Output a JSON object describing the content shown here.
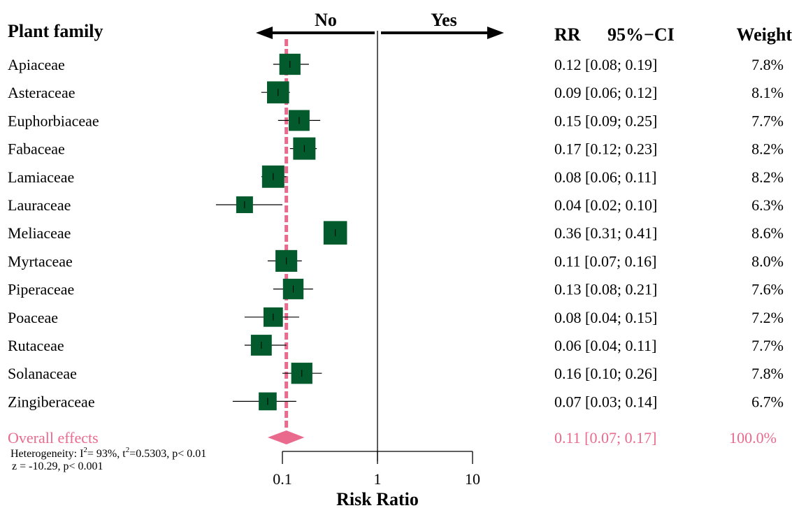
{
  "chart_data": {
    "type": "forest",
    "scale": "log",
    "xlabel": "Risk Ratio",
    "xlim": [
      0.1,
      10
    ],
    "x_ticks": [
      "0.1",
      "1",
      "10"
    ],
    "x_tick_values": [
      0.1,
      1,
      10
    ],
    "reference_line": 1,
    "direction_labels": {
      "left": "No",
      "right": "Yes"
    },
    "column_headers": {
      "study": "Plant family",
      "estimate": "RR",
      "ci": "95%−CI",
      "weight": "Weight"
    },
    "studies": [
      {
        "name": "Apiaceae",
        "rr": 0.12,
        "lower": 0.08,
        "upper": 0.19,
        "text": "0.12 [0.08; 0.19]",
        "weight": "7.8%",
        "w": 7.8
      },
      {
        "name": "Asteraceae",
        "rr": 0.09,
        "lower": 0.06,
        "upper": 0.12,
        "text": "0.09 [0.06; 0.12]",
        "weight": "8.1%",
        "w": 8.1
      },
      {
        "name": "Euphorbiaceae",
        "rr": 0.15,
        "lower": 0.09,
        "upper": 0.25,
        "text": "0.15 [0.09; 0.25]",
        "weight": "7.7%",
        "w": 7.7
      },
      {
        "name": "Fabaceae",
        "rr": 0.17,
        "lower": 0.12,
        "upper": 0.23,
        "text": "0.17 [0.12; 0.23]",
        "weight": "8.2%",
        "w": 8.2
      },
      {
        "name": "Lamiaceae",
        "rr": 0.08,
        "lower": 0.06,
        "upper": 0.11,
        "text": "0.08 [0.06; 0.11]",
        "weight": "8.2%",
        "w": 8.2
      },
      {
        "name": "Lauraceae",
        "rr": 0.04,
        "lower": 0.02,
        "upper": 0.1,
        "text": "0.04 [0.02; 0.10]",
        "weight": "6.3%",
        "w": 6.3
      },
      {
        "name": "Meliaceae",
        "rr": 0.36,
        "lower": 0.31,
        "upper": 0.41,
        "text": "0.36 [0.31; 0.41]",
        "weight": "8.6%",
        "w": 8.6
      },
      {
        "name": "Myrtaceae",
        "rr": 0.11,
        "lower": 0.07,
        "upper": 0.16,
        "text": "0.11 [0.07; 0.16]",
        "weight": "8.0%",
        "w": 8.0
      },
      {
        "name": "Piperaceae",
        "rr": 0.13,
        "lower": 0.08,
        "upper": 0.21,
        "text": "0.13 [0.08; 0.21]",
        "weight": "7.6%",
        "w": 7.6
      },
      {
        "name": "Poaceae",
        "rr": 0.08,
        "lower": 0.04,
        "upper": 0.15,
        "text": "0.08 [0.04; 0.15]",
        "weight": "7.2%",
        "w": 7.2
      },
      {
        "name": "Rutaceae",
        "rr": 0.06,
        "lower": 0.04,
        "upper": 0.11,
        "text": "0.06 [0.04; 0.11]",
        "weight": "7.7%",
        "w": 7.7
      },
      {
        "name": "Solanaceae",
        "rr": 0.16,
        "lower": 0.1,
        "upper": 0.26,
        "text": "0.16 [0.10; 0.26]",
        "weight": "7.8%",
        "w": 7.8
      },
      {
        "name": "Zingiberaceae",
        "rr": 0.07,
        "lower": 0.03,
        "upper": 0.14,
        "text": "0.07 [0.03; 0.14]",
        "weight": "6.7%",
        "w": 6.7
      }
    ],
    "overall": {
      "name": "Overall effects",
      "rr": 0.11,
      "lower": 0.07,
      "upper": 0.17,
      "text": "0.11 [0.07; 0.17]",
      "weight": "100.0%"
    },
    "heterogeneity": {
      "line1_prefix": "Heterogeneity: I",
      "line1_sup1": "2",
      "line1_mid": "= 93%, t",
      "line1_sup2": "2",
      "line1_suffix": "=0.5303, p< 0.01",
      "line2": "z = -10.29,  p< 0.001"
    },
    "colors": {
      "box": "#035a2c",
      "summary": "#ea6a8d",
      "line": "#000000"
    }
  }
}
